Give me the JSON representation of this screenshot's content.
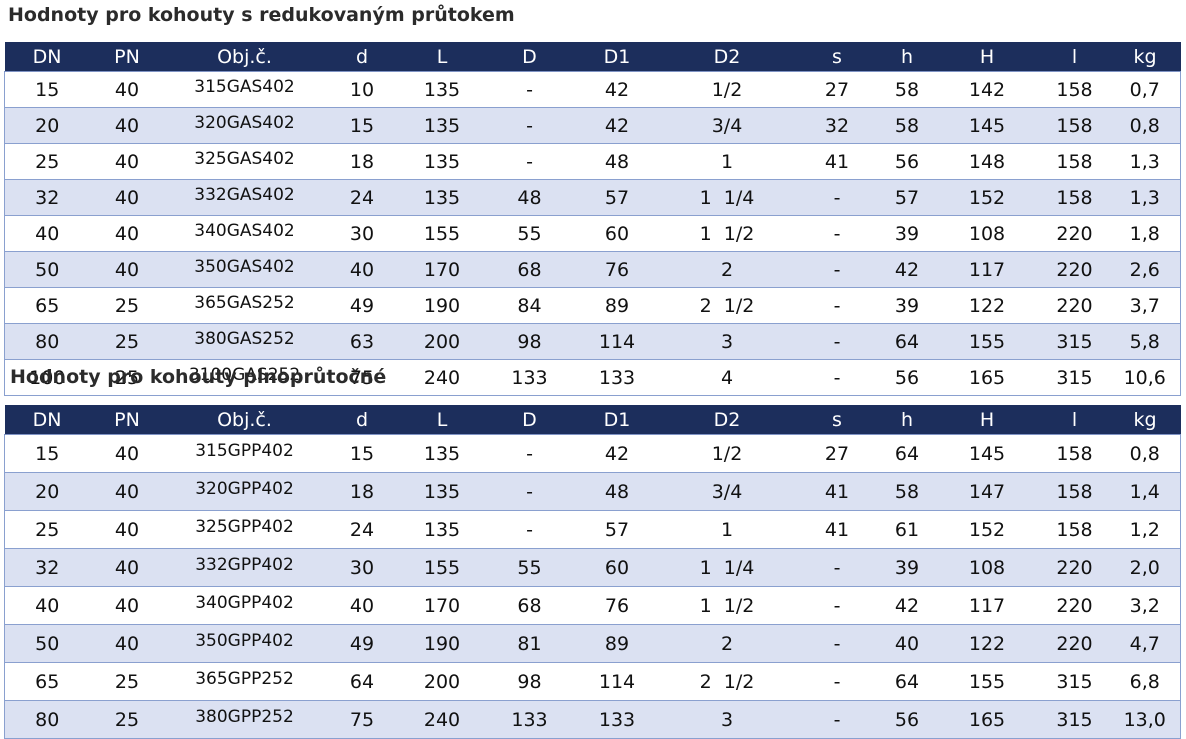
{
  "colors": {
    "header_bg": "#1c2e5c",
    "row_alt_bg": "#dbe1f2",
    "row_bg": "#ffffff",
    "border": "#8aa0cf"
  },
  "columns": [
    "DN",
    "PN",
    "Obj.č.",
    "d",
    "L",
    "D",
    "D1",
    "D2",
    "s",
    "h",
    "H",
    "l",
    "kg"
  ],
  "sections": [
    {
      "title": "Hodnoty pro kohouty s redukovaným průtokem",
      "rows": [
        [
          "15",
          "40",
          "315GAS402",
          "10",
          "135",
          "-",
          "42",
          "1/2",
          "27",
          "58",
          "142",
          "158",
          "0,7"
        ],
        [
          "20",
          "40",
          "320GAS402",
          "15",
          "135",
          "-",
          "42",
          "3/4",
          "32",
          "58",
          "145",
          "158",
          "0,8"
        ],
        [
          "25",
          "40",
          "325GAS402",
          "18",
          "135",
          "-",
          "48",
          "1",
          "41",
          "56",
          "148",
          "158",
          "1,3"
        ],
        [
          "32",
          "40",
          "332GAS402",
          "24",
          "135",
          "48",
          "57",
          "1  1/4",
          "-",
          "57",
          "152",
          "158",
          "1,3"
        ],
        [
          "40",
          "40",
          "340GAS402",
          "30",
          "155",
          "55",
          "60",
          "1  1/2",
          "-",
          "39",
          "108",
          "220",
          "1,8"
        ],
        [
          "50",
          "40",
          "350GAS402",
          "40",
          "170",
          "68",
          "76",
          "2",
          "-",
          "42",
          "117",
          "220",
          "2,6"
        ],
        [
          "65",
          "25",
          "365GAS252",
          "49",
          "190",
          "84",
          "89",
          "2  1/2",
          "-",
          "39",
          "122",
          "220",
          "3,7"
        ],
        [
          "80",
          "25",
          "380GAS252",
          "63",
          "200",
          "98",
          "114",
          "3",
          "-",
          "64",
          "155",
          "315",
          "5,8"
        ],
        [
          "100",
          "25",
          "3100GAS252",
          "75",
          "240",
          "133",
          "133",
          "4",
          "-",
          "56",
          "165",
          "315",
          "10,6"
        ]
      ]
    },
    {
      "title": "Hodnoty pro kohouty plnoprůtočné",
      "rows": [
        [
          "15",
          "40",
          "315GPP402",
          "15",
          "135",
          "-",
          "42",
          "1/2",
          "27",
          "64",
          "145",
          "158",
          "0,8"
        ],
        [
          "20",
          "40",
          "320GPP402",
          "18",
          "135",
          "-",
          "48",
          "3/4",
          "41",
          "58",
          "147",
          "158",
          "1,4"
        ],
        [
          "25",
          "40",
          "325GPP402",
          "24",
          "135",
          "-",
          "57",
          "1",
          "41",
          "61",
          "152",
          "158",
          "1,2"
        ],
        [
          "32",
          "40",
          "332GPP402",
          "30",
          "155",
          "55",
          "60",
          "1  1/4",
          "-",
          "39",
          "108",
          "220",
          "2,0"
        ],
        [
          "40",
          "40",
          "340GPP402",
          "40",
          "170",
          "68",
          "76",
          "1  1/2",
          "-",
          "42",
          "117",
          "220",
          "3,2"
        ],
        [
          "50",
          "40",
          "350GPP402",
          "49",
          "190",
          "81",
          "89",
          "2",
          "-",
          "40",
          "122",
          "220",
          "4,7"
        ],
        [
          "65",
          "25",
          "365GPP252",
          "64",
          "200",
          "98",
          "114",
          "2  1/2",
          "-",
          "64",
          "155",
          "315",
          "6,8"
        ],
        [
          "80",
          "25",
          "380GPP252",
          "75",
          "240",
          "133",
          "133",
          "3",
          "-",
          "56",
          "165",
          "315",
          "13,0"
        ]
      ]
    }
  ]
}
